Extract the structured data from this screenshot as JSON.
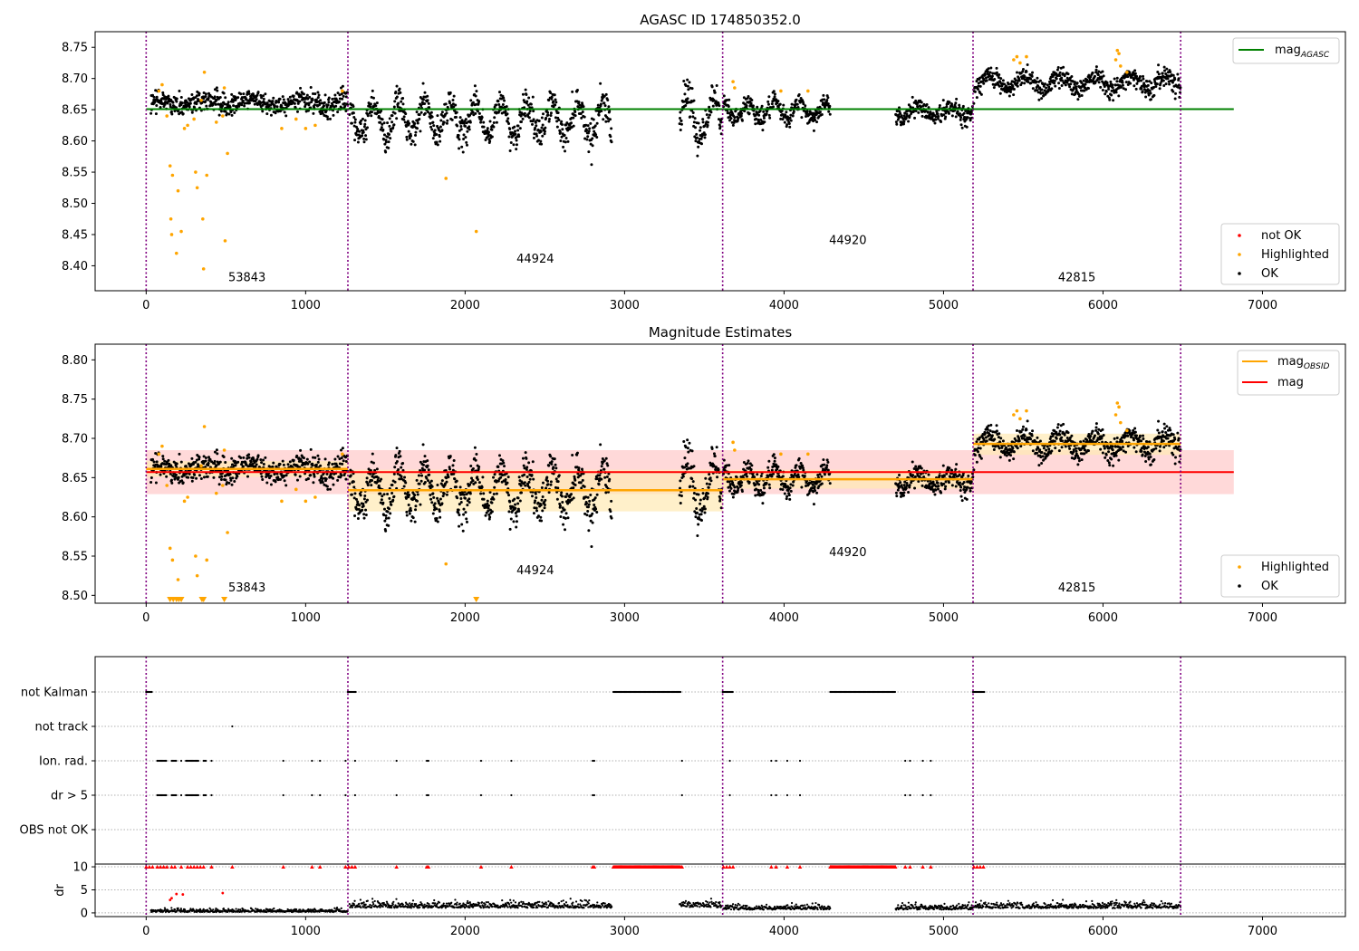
{
  "figure": {
    "background": "#ffffff",
    "colors": {
      "ok": "#000000",
      "highlighted": "#ffa500",
      "not_ok": "#ff0000",
      "mag_agasc": "#008000",
      "mag_obsid": "#ffa500",
      "mag": "#ff0000",
      "obsid_boundary": "#800080",
      "band_mag": "#ffcccc",
      "band_obsid": "#ffe9b3"
    },
    "obsid_boundaries": [
      0,
      1265,
      3615,
      5185,
      6487
    ],
    "obsids": [
      {
        "label": "53843",
        "start": 0,
        "end": 1265
      },
      {
        "label": "44924",
        "start": 1265,
        "end": 3615
      },
      {
        "label": "44920",
        "start": 3615,
        "end": 5185
      },
      {
        "label": "42815",
        "start": 5185,
        "end": 6487
      }
    ]
  },
  "chart_data": [
    {
      "type": "scatter",
      "title": "AGASC ID 174850352.0",
      "xlabel": "",
      "ylabel": "",
      "xlim": [
        -320,
        7520
      ],
      "ylim": [
        8.36,
        8.775
      ],
      "xticks": [
        "0",
        "1000",
        "2000",
        "3000",
        "4000",
        "5000",
        "6000",
        "7000"
      ],
      "yticks": [
        "8.40",
        "8.45",
        "8.50",
        "8.55",
        "8.60",
        "8.65",
        "8.70",
        "8.75"
      ],
      "obsid_label_y": [
        8.375,
        8.405,
        8.435,
        8.375
      ],
      "series": [
        {
          "name": "not OK",
          "color": "#ff0000",
          "marker": "dot"
        },
        {
          "name": "Highlighted",
          "color": "#ffa500",
          "marker": "dot",
          "points": [
            [
              80,
              8.68
            ],
            [
              100,
              8.69
            ],
            [
              130,
              8.64
            ],
            [
              150,
              8.56
            ],
            [
              155,
              8.475
            ],
            [
              160,
              8.45
            ],
            [
              165,
              8.545
            ],
            [
              190,
              8.42
            ],
            [
              200,
              8.52
            ],
            [
              220,
              8.455
            ],
            [
              240,
              8.62
            ],
            [
              260,
              8.625
            ],
            [
              300,
              8.635
            ],
            [
              310,
              8.55
            ],
            [
              320,
              8.525
            ],
            [
              345,
              8.665
            ],
            [
              355,
              8.475
            ],
            [
              360,
              8.395
            ],
            [
              365,
              8.71
            ],
            [
              380,
              8.545
            ],
            [
              440,
              8.63
            ],
            [
              480,
              8.64
            ],
            [
              490,
              8.685
            ],
            [
              495,
              8.44
            ],
            [
              510,
              8.58
            ],
            [
              850,
              8.62
            ],
            [
              940,
              8.635
            ],
            [
              1000,
              8.62
            ],
            [
              1060,
              8.625
            ],
            [
              1230,
              8.68
            ],
            [
              1880,
              8.54
            ],
            [
              2070,
              8.455
            ],
            [
              3680,
              8.695
            ],
            [
              3690,
              8.685
            ],
            [
              3980,
              8.68
            ],
            [
              4150,
              8.68
            ],
            [
              5440,
              8.73
            ],
            [
              5460,
              8.735
            ],
            [
              5480,
              8.725
            ],
            [
              5520,
              8.735
            ],
            [
              6080,
              8.73
            ],
            [
              6090,
              8.745
            ],
            [
              6100,
              8.74
            ],
            [
              6110,
              8.72
            ],
            [
              6150,
              8.71
            ]
          ]
        },
        {
          "name": "OK",
          "color": "#000000",
          "marker": "dot"
        }
      ],
      "lines": [
        {
          "name": "mag$_{AGASC}$",
          "color": "#008000",
          "y": 8.651,
          "x": [
            0,
            6820
          ]
        }
      ],
      "segments": [
        {
          "start": 30,
          "end": 1265,
          "base": 8.662,
          "noise": 0.008,
          "wave": 0.006,
          "waveT": 300
        },
        {
          "start": 1275,
          "end": 2920,
          "base": 8.635,
          "noise": 0.012,
          "wave": 0.028,
          "waveT": 160
        },
        {
          "start": 3345,
          "end": 3610,
          "base": 8.635,
          "noise": 0.012,
          "wave": 0.035,
          "waveT": 170
        },
        {
          "start": 3620,
          "end": 4290,
          "base": 8.648,
          "noise": 0.008,
          "wave": 0.012,
          "waveT": 160
        },
        {
          "start": 4700,
          "end": 5185,
          "base": 8.647,
          "noise": 0.008,
          "wave": 0.008,
          "waveT": 200
        },
        {
          "start": 5190,
          "end": 6487,
          "base": 8.694,
          "noise": 0.008,
          "wave": 0.012,
          "waveT": 220
        }
      ]
    },
    {
      "type": "scatter",
      "title": "Magnitude Estimates",
      "xlabel": "",
      "ylabel": "",
      "xlim": [
        -320,
        7520
      ],
      "ylim": [
        8.49,
        8.82
      ],
      "xticks": [
        "0",
        "1000",
        "2000",
        "3000",
        "4000",
        "5000",
        "6000",
        "7000"
      ],
      "yticks": [
        "8.50",
        "8.55",
        "8.60",
        "8.65",
        "8.70",
        "8.75",
        "8.80"
      ],
      "obsid_label_y": [
        8.505,
        8.527,
        8.55,
        8.505
      ],
      "mag": {
        "value": 8.657,
        "band": [
          8.629,
          8.685
        ],
        "x": [
          0,
          6820
        ]
      },
      "mag_obsid": [
        {
          "start": 0,
          "end": 1265,
          "value": 8.661,
          "band": [
            8.651,
            8.671
          ]
        },
        {
          "start": 1265,
          "end": 3615,
          "value": 8.634,
          "band": [
            8.607,
            8.66
          ]
        },
        {
          "start": 3615,
          "end": 5185,
          "value": 8.648,
          "band": [
            8.636,
            8.66
          ]
        },
        {
          "start": 5185,
          "end": 6487,
          "value": 8.693,
          "band": [
            8.679,
            8.706
          ]
        }
      ],
      "series": [
        {
          "name": "Highlighted",
          "color": "#ffa500",
          "marker": "dot",
          "points": [
            [
              80,
              8.68
            ],
            [
              100,
              8.69
            ],
            [
              130,
              8.64
            ],
            [
              150,
              8.56
            ],
            [
              165,
              8.545
            ],
            [
              200,
              8.52
            ],
            [
              240,
              8.62
            ],
            [
              260,
              8.625
            ],
            [
              310,
              8.55
            ],
            [
              320,
              8.525
            ],
            [
              345,
              8.665
            ],
            [
              365,
              8.715
            ],
            [
              380,
              8.545
            ],
            [
              440,
              8.63
            ],
            [
              480,
              8.64
            ],
            [
              490,
              8.685
            ],
            [
              510,
              8.58
            ],
            [
              850,
              8.62
            ],
            [
              940,
              8.635
            ],
            [
              1000,
              8.62
            ],
            [
              1060,
              8.625
            ],
            [
              1230,
              8.68
            ],
            [
              1880,
              8.54
            ],
            [
              3680,
              8.695
            ],
            [
              3690,
              8.685
            ],
            [
              3980,
              8.68
            ],
            [
              4150,
              8.68
            ],
            [
              5440,
              8.73
            ],
            [
              5460,
              8.735
            ],
            [
              5480,
              8.725
            ],
            [
              5520,
              8.735
            ],
            [
              6080,
              8.73
            ],
            [
              6090,
              8.745
            ],
            [
              6100,
              8.74
            ],
            [
              6110,
              8.72
            ],
            [
              6150,
              8.71
            ]
          ],
          "offscale": [
            150,
            170,
            190,
            205,
            220,
            350,
            360,
            490,
            2070
          ]
        },
        {
          "name": "OK",
          "color": "#000000",
          "marker": "dot"
        }
      ],
      "lines": [
        {
          "name": "mag$_{OBSID}$",
          "color": "#ffa500"
        },
        {
          "name": "mag",
          "color": "#ff0000"
        }
      ]
    },
    {
      "type": "scatter",
      "title": "",
      "xlabel": "",
      "ylabel": "dr",
      "xlim": [
        -320,
        7520
      ],
      "xticks": [
        "0",
        "1000",
        "2000",
        "3000",
        "4000",
        "5000",
        "6000",
        "7000"
      ],
      "flag_rows": [
        "not Kalman",
        "not track",
        "Ion. rad.",
        "dr > 5",
        "OBS not OK"
      ],
      "flags": {
        "not Kalman": {
          "ranges": [
            [
              0,
              40
            ],
            [
              1265,
              1320
            ],
            [
              2930,
              3350
            ],
            [
              3615,
              3680
            ],
            [
              4290,
              4700
            ],
            [
              5185,
              5260
            ]
          ],
          "points": []
        },
        "not track": {
          "ranges": [],
          "points": [
            540
          ]
        },
        "Ion. rad.": {
          "ranges": [
            [
              70,
              130
            ],
            [
              160,
              190
            ],
            [
              250,
              330
            ],
            [
              360,
              380
            ]
          ],
          "points": [
            220,
            410,
            860,
            1040,
            1090,
            1250,
            1310,
            1570,
            1760,
            1770,
            2100,
            2290,
            2800,
            2810,
            3360,
            3660,
            3920,
            3950,
            4020,
            4100,
            4760,
            4790,
            4870,
            4920
          ]
        },
        "dr > 5": {
          "ranges": [
            [
              70,
              130
            ],
            [
              160,
              190
            ],
            [
              250,
              330
            ],
            [
              360,
              380
            ]
          ],
          "points": [
            220,
            410,
            860,
            1040,
            1090,
            1250,
            1310,
            1570,
            1760,
            1770,
            2100,
            2290,
            2800,
            2810,
            3360,
            3660,
            3920,
            3950,
            4020,
            4100,
            4760,
            4790,
            4870,
            4920
          ]
        },
        "OBS not OK": {
          "ranges": [],
          "points": []
        }
      },
      "dr": {
        "yticks": [
          "0",
          "5",
          "10"
        ],
        "ylim": [
          -0.8,
          10.6
        ],
        "clip": 10,
        "capped_points": [
          0,
          20,
          40,
          70,
          90,
          110,
          130,
          160,
          180,
          220,
          260,
          280,
          300,
          320,
          340,
          360,
          410,
          540,
          860,
          1040,
          1090,
          1250,
          1270,
          1290,
          1310,
          1570,
          1760,
          1770,
          2100,
          2290,
          2800,
          2810,
          3360,
          3620,
          3640,
          3660,
          3680,
          3920,
          3950,
          4020,
          4100,
          4760,
          4790,
          4870,
          4920,
          5190,
          5210,
          5230,
          5250
        ],
        "capped_ranges": [
          [
            2930,
            3350
          ],
          [
            4290,
            4700
          ]
        ],
        "highlight_points": [
          [
            150,
            2.8
          ],
          [
            160,
            3.2
          ],
          [
            190,
            4.1
          ],
          [
            230,
            4.0
          ],
          [
            480,
            4.3
          ]
        ],
        "segments": [
          {
            "start": 30,
            "end": 1265,
            "base": 0.4,
            "noise": 0.3
          },
          {
            "start": 1275,
            "end": 2920,
            "base": 1.3,
            "noise": 0.6
          },
          {
            "start": 3345,
            "end": 3610,
            "base": 1.4,
            "noise": 0.6
          },
          {
            "start": 3620,
            "end": 4290,
            "base": 0.9,
            "noise": 0.5
          },
          {
            "start": 4700,
            "end": 5185,
            "base": 0.9,
            "noise": 0.5
          },
          {
            "start": 5190,
            "end": 6487,
            "base": 1.2,
            "noise": 0.6
          }
        ]
      },
      "series": [
        {
          "name": "not OK",
          "color": "#ff0000",
          "marker": "triangle"
        },
        {
          "name": "OK",
          "color": "#000000",
          "marker": "dot"
        },
        {
          "name": "Highlighted",
          "color": "#ffa500",
          "marker": "dot"
        }
      ]
    }
  ]
}
